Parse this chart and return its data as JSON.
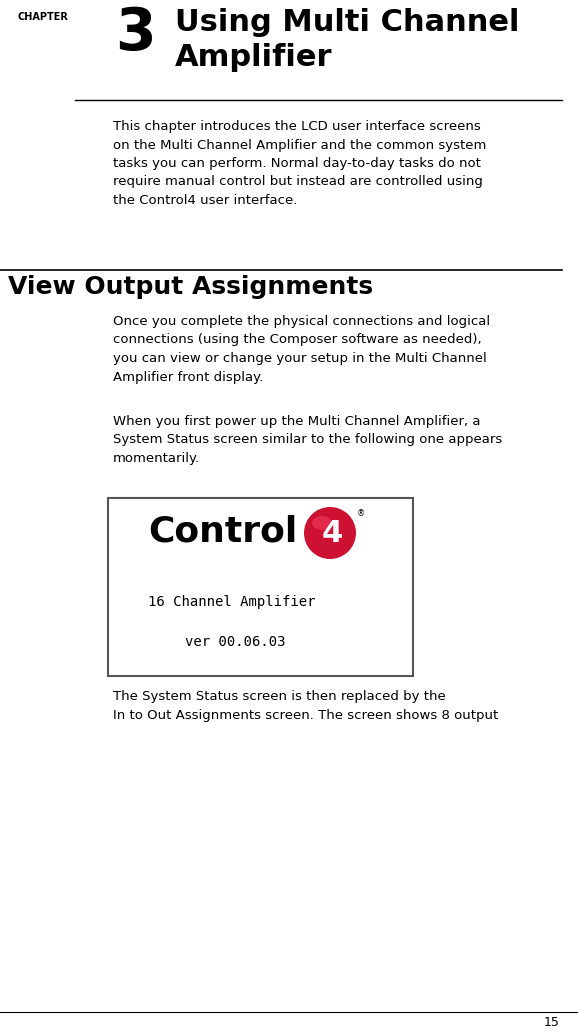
{
  "bg_color": "#ffffff",
  "page_number": "15",
  "chapter_label": "CHAPTER",
  "chapter_number": "3",
  "chapter_title": "Using Multi Channel\nAmplifier",
  "intro_text": "This chapter introduces the LCD user interface screens\non the Multi Channel Amplifier and the common system\ntasks you can perform. Normal day-to-day tasks do not\nrequire manual control but instead are controlled using\nthe Control4 user interface.",
  "section_title": "View Output Assignments",
  "para1": "Once you complete the physical connections and logical\nconnections (using the Composer software as needed),\nyou can view or change your setup in the Multi Channel\nAmplifier front display.",
  "para2": "When you first power up the Multi Channel Amplifier, a\nSystem Status screen similar to the following one appears\nmomentarily.",
  "lcd_line1": "16 Channel Amplifier",
  "lcd_line2": "ver 00.06.03",
  "para3": "The System Status screen is then replaced by the\nIn to Out Assignments screen. The screen shows 8 output",
  "control4_text": "Control",
  "control4_num": "4",
  "trademark": "®"
}
